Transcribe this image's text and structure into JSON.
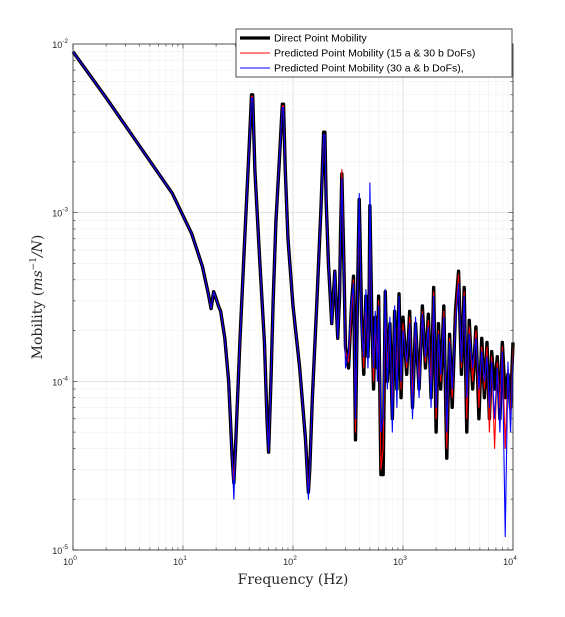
{
  "chart_data": {
    "type": "line",
    "title": "",
    "xlabel": "Frequency (Hz)",
    "ylabel": "Mobility (ms^{-1}/N)",
    "ylabel_parts": {
      "prefix": "Mobility (",
      "math": "ms",
      "sup": "−1",
      "math2": "/N",
      "suffix": ")"
    },
    "xscale": "log",
    "yscale": "log",
    "xlim": [
      1,
      10000
    ],
    "ylim": [
      1e-05,
      0.01
    ],
    "x_ticks": [
      {
        "base": "10",
        "exp": "0",
        "value": 1
      },
      {
        "base": "10",
        "exp": "1",
        "value": 10
      },
      {
        "base": "10",
        "exp": "2",
        "value": 100
      },
      {
        "base": "10",
        "exp": "3",
        "value": 1000
      },
      {
        "base": "10",
        "exp": "4",
        "value": 10000
      }
    ],
    "y_ticks": [
      {
        "base": "10",
        "exp": "-5",
        "value": 1e-05
      },
      {
        "base": "10",
        "exp": "-4",
        "value": 0.0001
      },
      {
        "base": "10",
        "exp": "-3",
        "value": 0.001
      },
      {
        "base": "10",
        "exp": "-2",
        "value": 0.01
      }
    ],
    "grid": true,
    "minor_grid": true,
    "legend_position": "top-right",
    "series": [
      {
        "name": "Direct Point Mobility",
        "color": "#000000",
        "x": [
          1,
          2,
          4,
          8,
          12,
          15,
          17,
          18,
          19,
          20,
          21,
          22,
          24,
          26,
          28,
          29,
          30,
          33,
          36,
          40,
          42,
          43,
          45,
          50,
          55,
          58,
          60,
          63,
          66,
          70,
          75,
          80,
          82,
          85,
          90,
          100,
          115,
          130,
          138,
          142,
          150,
          165,
          180,
          190,
          195,
          200,
          210,
          225,
          240,
          255,
          265,
          270,
          278,
          290,
          300,
          320,
          340,
          355,
          370,
          385,
          400,
          420,
          440,
          460,
          480,
          490,
          500,
          520,
          540,
          560,
          585,
          600,
          630,
          660,
          690,
          720,
          760,
          800,
          840,
          880,
          920,
          960,
          1000,
          1080,
          1150,
          1220,
          1300,
          1400,
          1500,
          1600,
          1700,
          1800,
          1900,
          2000,
          2100,
          2200,
          2350,
          2500,
          2650,
          2800,
          3000,
          3200,
          3400,
          3600,
          3800,
          4000,
          4300,
          4600,
          4900,
          5200,
          5500,
          5800,
          6100,
          6400,
          6800,
          7200,
          7600,
          8000,
          8500,
          9000,
          9500,
          10000
        ],
        "y": [
          0.009,
          0.0048,
          0.0025,
          0.0013,
          0.00075,
          0.00048,
          0.00033,
          0.00027,
          0.00034,
          0.00031,
          0.00028,
          0.00026,
          0.00018,
          0.0001,
          3.5e-05,
          2.5e-05,
          4e-05,
          0.00018,
          0.0006,
          0.0025,
          0.005,
          0.005,
          0.0018,
          0.0005,
          0.00017,
          6e-05,
          3.8e-05,
          0.0001,
          0.0003,
          0.0009,
          0.002,
          0.0044,
          0.0044,
          0.0018,
          0.0007,
          0.00028,
          0.00012,
          4.5e-05,
          2.2e-05,
          3e-05,
          8e-05,
          0.0003,
          0.0011,
          0.003,
          0.003,
          0.0012,
          0.0005,
          0.00022,
          0.00045,
          0.00018,
          0.00032,
          0.0007,
          0.0017,
          0.0005,
          0.00016,
          0.00012,
          0.00028,
          0.00042,
          4.5e-05,
          0.0003,
          0.0012,
          0.00025,
          0.00011,
          0.00032,
          0.00014,
          0.00022,
          0.0011,
          0.00025,
          9e-05,
          0.00024,
          0.00012,
          0.00032,
          2.8e-05,
          2.8e-05,
          0.00034,
          0.0001,
          0.00022,
          6e-05,
          0.00026,
          9e-05,
          0.00033,
          8e-05,
          0.00024,
          0.00011,
          0.00026,
          7e-05,
          0.00022,
          9e-05,
          0.00028,
          0.00012,
          0.00025,
          8e-05,
          0.00036,
          5e-05,
          0.00022,
          9e-05,
          0.00028,
          3.5e-05,
          0.00019,
          7e-05,
          0.00026,
          0.00045,
          0.00011,
          0.00036,
          5e-05,
          0.00023,
          9e-05,
          0.00021,
          6e-05,
          0.00018,
          8e-05,
          0.00017,
          6e-05,
          0.00015,
          9e-05,
          0.00014,
          6e-05,
          0.00017,
          8e-05,
          0.00011,
          7e-05,
          0.00017
        ]
      },
      {
        "name": "Predicted Point Mobility (15 a & 30 b DoFs)",
        "color": "#ff0000",
        "x": [
          1,
          2,
          4,
          8,
          12,
          15,
          17,
          18,
          19,
          20,
          21,
          22,
          24,
          26,
          28,
          29,
          30,
          33,
          36,
          40,
          42,
          43,
          45,
          50,
          55,
          58,
          60,
          63,
          66,
          70,
          75,
          80,
          82,
          85,
          90,
          100,
          115,
          130,
          138,
          142,
          150,
          165,
          180,
          190,
          195,
          200,
          210,
          225,
          240,
          255,
          265,
          270,
          278,
          290,
          300,
          320,
          340,
          355,
          370,
          385,
          400,
          420,
          440,
          460,
          480,
          490,
          500,
          520,
          540,
          560,
          585,
          600,
          630,
          660,
          690,
          720,
          760,
          800,
          840,
          880,
          920,
          960,
          1000,
          1080,
          1150,
          1220,
          1300,
          1400,
          1500,
          1600,
          1700,
          1800,
          1900,
          2000,
          2100,
          2200,
          2350,
          2500,
          2650,
          2800,
          3000,
          3200,
          3400,
          3600,
          3800,
          4000,
          4300,
          4600,
          4900,
          5200,
          5500,
          5800,
          6100,
          6400,
          6800,
          7200,
          7600,
          8000,
          8500,
          9000,
          9500,
          10000
        ],
        "y": [
          0.009,
          0.0048,
          0.0025,
          0.0013,
          0.00075,
          0.00048,
          0.00033,
          0.00027,
          0.00034,
          0.00031,
          0.00028,
          0.00026,
          0.00018,
          0.0001,
          3.5e-05,
          2.6e-05,
          4e-05,
          0.00018,
          0.0006,
          0.0025,
          0.0049,
          0.0049,
          0.0018,
          0.0005,
          0.00017,
          6e-05,
          3.8e-05,
          0.0001,
          0.0003,
          0.0009,
          0.002,
          0.0043,
          0.0043,
          0.0018,
          0.0007,
          0.00028,
          0.00012,
          4.5e-05,
          2.2e-05,
          3e-05,
          8e-05,
          0.0003,
          0.0011,
          0.0029,
          0.0029,
          0.0012,
          0.0005,
          0.00022,
          0.00045,
          0.00018,
          0.00032,
          0.0007,
          0.0018,
          0.0005,
          0.00015,
          0.00013,
          0.00026,
          0.0004,
          5e-05,
          0.00028,
          0.0011,
          0.00023,
          0.00012,
          0.0003,
          0.00015,
          0.00021,
          0.001,
          0.00023,
          0.0001,
          0.00022,
          0.00013,
          0.0003,
          3e-05,
          4e-05,
          0.0003,
          0.00012,
          0.0002,
          7e-05,
          0.00024,
          0.0001,
          0.0003,
          9e-05,
          0.00022,
          0.00012,
          0.00024,
          8e-05,
          0.0002,
          0.0001,
          0.00026,
          0.00013,
          0.00023,
          9e-05,
          0.00034,
          6e-05,
          0.0002,
          0.0001,
          0.00026,
          4e-05,
          0.00018,
          8e-05,
          0.00024,
          0.00043,
          0.00012,
          0.00034,
          6e-05,
          0.00021,
          0.0001,
          0.0002,
          7e-05,
          0.00016,
          9e-05,
          0.00016,
          5e-05,
          0.00014,
          4e-05,
          0.00013,
          7e-05,
          0.00016,
          4e-05,
          0.00012,
          6e-05,
          0.00016
        ]
      },
      {
        "name": "Predicted Point Mobility (30 a & b DoFs),",
        "color": "#0000ff",
        "x": [
          1,
          2,
          4,
          8,
          12,
          15,
          17,
          18,
          19,
          20,
          21,
          22,
          24,
          26,
          28,
          29,
          30,
          33,
          36,
          40,
          42,
          43,
          45,
          50,
          55,
          58,
          60,
          63,
          66,
          70,
          75,
          80,
          82,
          85,
          90,
          100,
          115,
          130,
          138,
          142,
          150,
          165,
          180,
          190,
          195,
          200,
          210,
          225,
          240,
          255,
          265,
          270,
          278,
          290,
          300,
          320,
          340,
          355,
          370,
          385,
          400,
          420,
          440,
          460,
          480,
          490,
          500,
          520,
          540,
          560,
          585,
          600,
          630,
          660,
          690,
          720,
          760,
          800,
          840,
          880,
          920,
          960,
          1000,
          1080,
          1150,
          1220,
          1300,
          1400,
          1500,
          1600,
          1700,
          1800,
          1900,
          2000,
          2100,
          2200,
          2350,
          2500,
          2650,
          2800,
          3000,
          3200,
          3400,
          3600,
          3800,
          4000,
          4300,
          4600,
          4900,
          5200,
          5500,
          5800,
          6100,
          6400,
          6800,
          7200,
          7600,
          8000,
          8500,
          9000,
          9500,
          10000
        ],
        "y": [
          0.009,
          0.0048,
          0.0025,
          0.0013,
          0.00075,
          0.00048,
          0.00033,
          0.00027,
          0.00034,
          0.00031,
          0.00028,
          0.00026,
          0.00018,
          0.0001,
          3.5e-05,
          2e-05,
          4e-05,
          0.00018,
          0.0006,
          0.0025,
          0.0048,
          0.0048,
          0.0018,
          0.0005,
          0.00017,
          6e-05,
          3.8e-05,
          0.0001,
          0.0003,
          0.0009,
          0.002,
          0.0042,
          0.0042,
          0.0018,
          0.0007,
          0.00028,
          0.00012,
          4.5e-05,
          2e-05,
          3e-05,
          8e-05,
          0.0003,
          0.0011,
          0.0029,
          0.0029,
          0.0012,
          0.0005,
          0.00022,
          0.00045,
          0.00018,
          0.00032,
          0.0007,
          0.0016,
          0.00045,
          0.00012,
          0.00015,
          0.0003,
          0.00038,
          6e-05,
          0.00026,
          0.0013,
          0.0002,
          0.00014,
          0.00035,
          0.00012,
          0.0002,
          0.0015,
          0.00021,
          0.00012,
          0.00026,
          0.0001,
          0.00028,
          5e-05,
          6e-05,
          0.00035,
          9e-05,
          0.00024,
          5e-05,
          0.00028,
          7e-05,
          0.00032,
          0.0001,
          0.0002,
          0.00013,
          0.00022,
          6e-05,
          0.00024,
          8e-05,
          0.00025,
          0.00014,
          0.00021,
          7e-05,
          0.00032,
          7e-05,
          0.00019,
          0.00011,
          0.00024,
          5e-05,
          0.00017,
          9e-05,
          0.00022,
          0.00038,
          0.00013,
          0.00032,
          8e-05,
          0.00019,
          0.00012,
          0.00018,
          9e-05,
          0.00015,
          0.0001,
          0.00014,
          7e-05,
          0.00013,
          6e-05,
          0.00012,
          5e-05,
          0.00015,
          1.2e-05,
          0.00013,
          5e-05,
          0.00014
        ]
      }
    ]
  }
}
